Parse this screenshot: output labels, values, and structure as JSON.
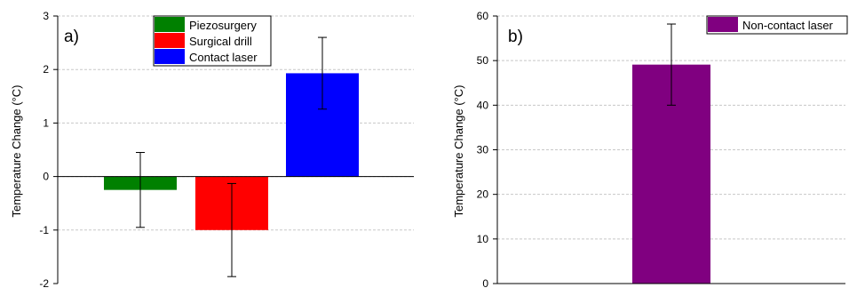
{
  "chart_data": [
    {
      "type": "bar",
      "panel_label": "a)",
      "ylabel": "Temperature Change (°C)",
      "ylim": [
        -2,
        3
      ],
      "yticks": [
        -2,
        -1,
        0,
        1,
        2,
        3
      ],
      "grid": "horizontal dashed",
      "legend_position": "top-center",
      "series": [
        {
          "name": "Piezosurgery",
          "value": -0.25,
          "error": 0.7,
          "color": "#008000"
        },
        {
          "name": "Surgical drill",
          "value": -1.0,
          "error": 0.87,
          "color": "#ff0000"
        },
        {
          "name": "Contact laser",
          "value": 1.93,
          "error": 0.67,
          "color": "#0000ff"
        }
      ]
    },
    {
      "type": "bar",
      "panel_label": "b)",
      "ylabel": "Temperature Change (°C)",
      "ylim": [
        0,
        60
      ],
      "yticks": [
        0,
        10,
        20,
        30,
        40,
        50,
        60
      ],
      "grid": "horizontal dashed",
      "legend_position": "top-right",
      "series": [
        {
          "name": "Non-contact laser",
          "value": 49.1,
          "error": 9.1,
          "color": "#800080"
        }
      ]
    }
  ]
}
